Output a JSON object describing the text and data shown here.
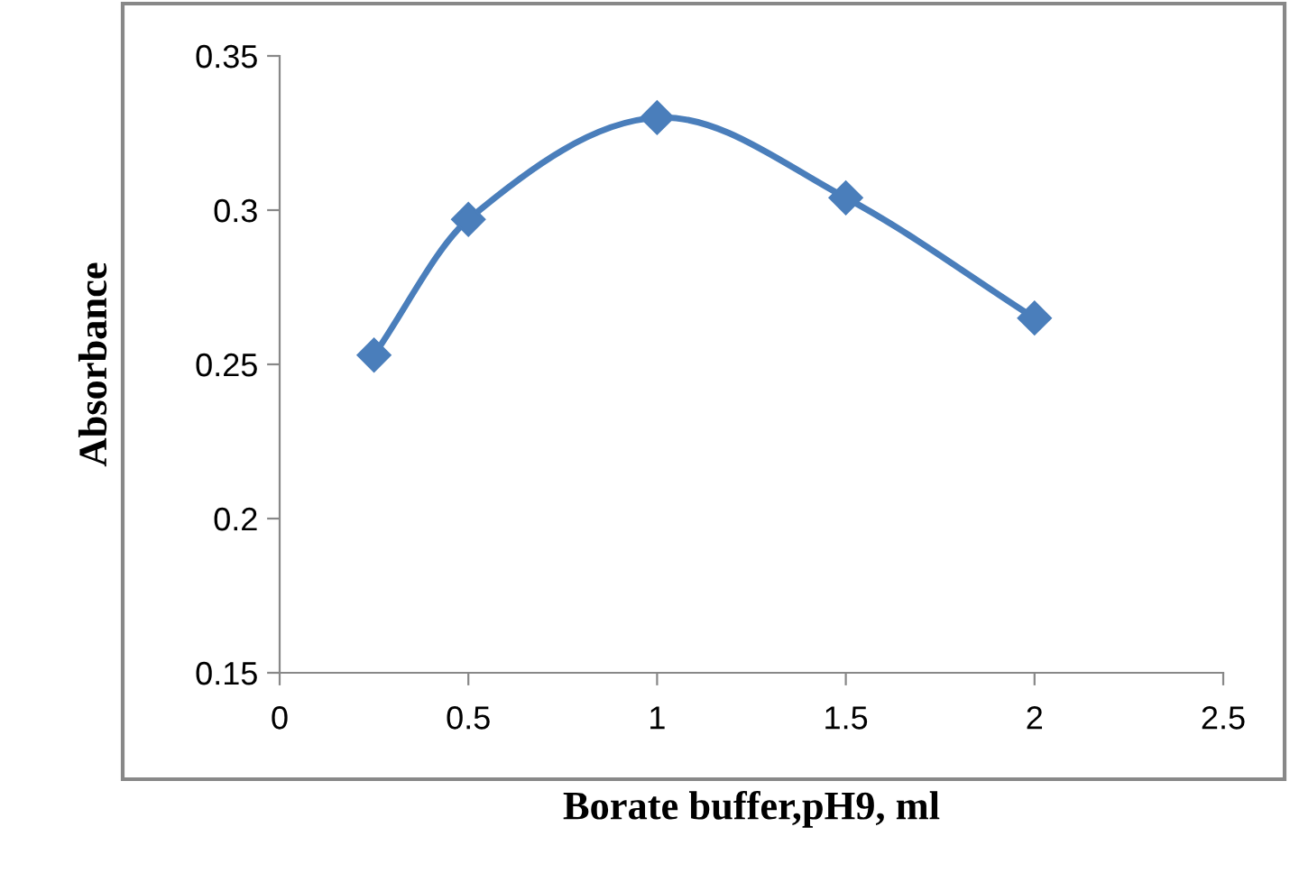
{
  "chart_data": {
    "type": "line",
    "xlabel": "Borate buffer,pH9, ml",
    "ylabel": "Absorbance",
    "x": [
      0.25,
      0.5,
      1,
      1.5,
      2
    ],
    "series": [
      {
        "color": "#4a7ebb",
        "values": [
          0.253,
          0.297,
          0.33,
          0.304,
          0.265
        ]
      }
    ],
    "xlim": [
      0,
      2.5
    ],
    "xticks": [
      0,
      0.5,
      1,
      1.5,
      2,
      2.5
    ],
    "ylim": [
      0.15,
      0.35
    ],
    "yticks": [
      0.15,
      0.2,
      0.25,
      0.3,
      0.35
    ],
    "grid": false,
    "marker": "diamond",
    "line_style": "solid"
  }
}
